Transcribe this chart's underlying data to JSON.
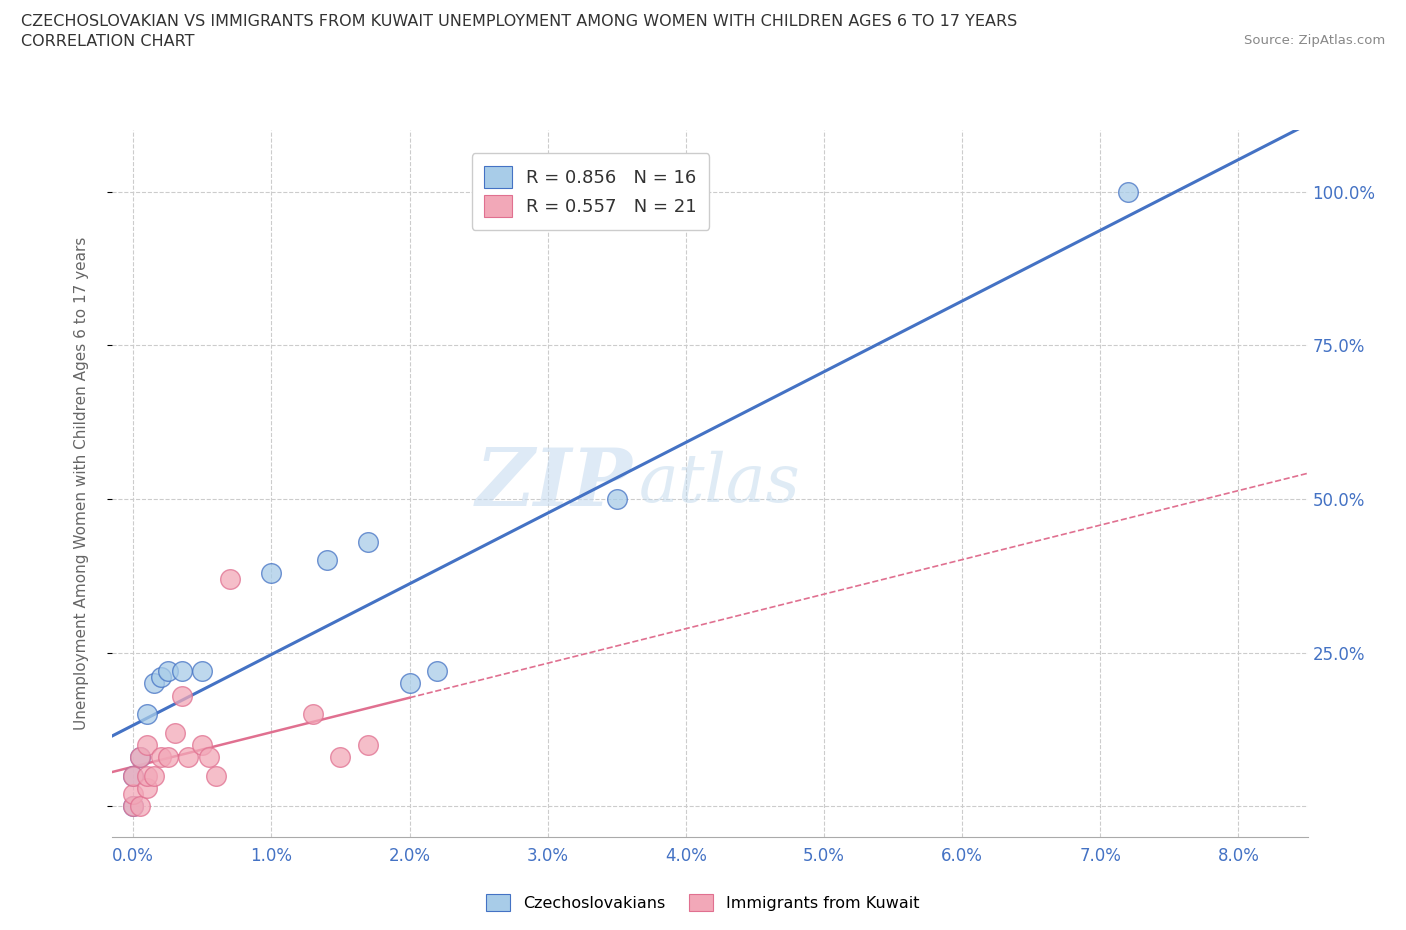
{
  "title_line1": "CZECHOSLOVAKIAN VS IMMIGRANTS FROM KUWAIT UNEMPLOYMENT AMONG WOMEN WITH CHILDREN AGES 6 TO 17 YEARS",
  "title_line2": "CORRELATION CHART",
  "source_text": "Source: ZipAtlas.com",
  "watermark_zip": "ZIP",
  "watermark_atlas": "atlas",
  "xlabel_ticks": [
    0.0,
    1.0,
    2.0,
    3.0,
    4.0,
    5.0,
    6.0,
    7.0,
    8.0
  ],
  "ylabel_ticks": [
    0.0,
    25.0,
    50.0,
    75.0,
    100.0
  ],
  "xlim": [
    -0.15,
    8.5
  ],
  "ylim": [
    -5.0,
    110.0
  ],
  "legend_label1": "R = 0.856   N = 16",
  "legend_label2": "R = 0.557   N = 21",
  "blue_color": "#A8CCE8",
  "pink_color": "#F2A8B8",
  "blue_line_color": "#4472C4",
  "pink_line_color": "#E07090",
  "axis_tick_color": "#4472C4",
  "legend_text_color": "#333333",
  "grid_color": "#CCCCCC",
  "background_color": "#FFFFFF",
  "ylabel": "Unemployment Among Women with Children Ages 6 to 17 years",
  "czechoslovakian_x": [
    0.0,
    0.0,
    0.05,
    0.1,
    0.15,
    0.2,
    0.25,
    0.35,
    0.5,
    1.0,
    1.4,
    1.7,
    2.0,
    2.2,
    3.5,
    7.2
  ],
  "czechoslovakian_y": [
    0.0,
    5.0,
    8.0,
    15.0,
    20.0,
    21.0,
    22.0,
    22.0,
    22.0,
    38.0,
    40.0,
    43.0,
    20.0,
    22.0,
    50.0,
    100.0
  ],
  "kuwait_x": [
    0.0,
    0.0,
    0.0,
    0.05,
    0.05,
    0.1,
    0.1,
    0.1,
    0.15,
    0.2,
    0.25,
    0.3,
    0.35,
    0.4,
    0.5,
    0.55,
    0.6,
    0.7,
    1.3,
    1.5,
    1.7
  ],
  "kuwait_y": [
    0.0,
    2.0,
    5.0,
    0.0,
    8.0,
    3.0,
    5.0,
    10.0,
    5.0,
    8.0,
    8.0,
    12.0,
    18.0,
    8.0,
    10.0,
    8.0,
    5.0,
    37.0,
    15.0,
    8.0,
    10.0
  ]
}
